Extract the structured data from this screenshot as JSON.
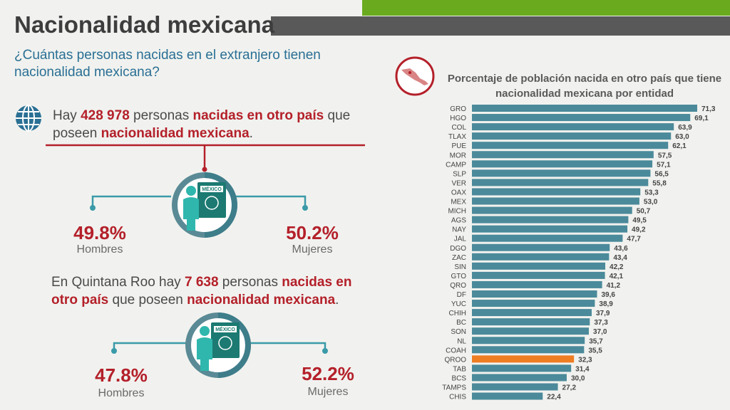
{
  "title": "Nacionalidad mexicana",
  "subtitle": "¿Cuántas personas nacidas en el extranjero tienen nacionalidad mexicana?",
  "national": {
    "text_1": "Hay ",
    "count": "428 978",
    "text_2": " personas ",
    "highlight_1": "nacidas en otro país",
    "text_3": " que poseen ",
    "highlight_2": "nacionalidad mexicana",
    "text_4": ".",
    "men_pct": "49.8%",
    "men_label": "Hombres",
    "women_pct": "50.2%",
    "women_label": "Mujeres",
    "badge": "MÉXICO"
  },
  "state": {
    "text_1": "En Quintana Roo hay ",
    "count": "7 638",
    "text_2": " personas ",
    "highlight_1": "nacidas en otro país",
    "text_3": " que poseen ",
    "highlight_2": "nacionalidad mexicana",
    "text_4": ".",
    "men_pct": "47.8%",
    "men_label": "Hombres",
    "women_pct": "52.2%",
    "women_label": "Mujeres",
    "badge": "MÉXICO"
  },
  "colors": {
    "accent_red": "#b4202a",
    "teal": "#2fb7ad",
    "bar": "#4b8a9a",
    "highlight_bar": "#ef7d22",
    "green": "#6aaa1f",
    "dark_gray": "#595959"
  },
  "chart_data": {
    "type": "bar",
    "orientation": "horizontal",
    "title": "Porcentaje de población nacida en otro país que tiene nacionalidad mexicana por entidad",
    "highlight": "QROO",
    "categories": [
      "GRO",
      "HGO",
      "COL",
      "TLAX",
      "PUE",
      "MOR",
      "CAMP",
      "SLP",
      "VER",
      "OAX",
      "MEX",
      "MICH",
      "AGS",
      "NAY",
      "JAL",
      "DGO",
      "ZAC",
      "SIN",
      "GTO",
      "QRO",
      "DF",
      "YUC",
      "CHIH",
      "BC",
      "SON",
      "NL",
      "COAH",
      "QROO",
      "TAB",
      "BCS",
      "TAMPS",
      "CHIS"
    ],
    "values": [
      71.3,
      69.1,
      63.9,
      63.0,
      62.1,
      57.5,
      57.1,
      56.5,
      55.8,
      53.3,
      53.0,
      50.7,
      49.5,
      49.2,
      47.7,
      43.6,
      43.4,
      42.2,
      42.1,
      41.2,
      39.6,
      38.9,
      37.9,
      37.3,
      37.0,
      35.7,
      35.5,
      32.3,
      31.4,
      30.0,
      27.2,
      22.4
    ],
    "labels": [
      "71,3",
      "69,1",
      "63,9",
      "63,0",
      "62,1",
      "57,5",
      "57,1",
      "56,5",
      "55,8",
      "53,3",
      "53,0",
      "50,7",
      "49,5",
      "49,2",
      "47,7",
      "43,6",
      "43,4",
      "42,2",
      "42,1",
      "41,2",
      "39,6",
      "38,9",
      "37,9",
      "37,3",
      "37,0",
      "35,7",
      "35,5",
      "32,3",
      "31,4",
      "30,0",
      "27,2",
      "22,4"
    ]
  }
}
